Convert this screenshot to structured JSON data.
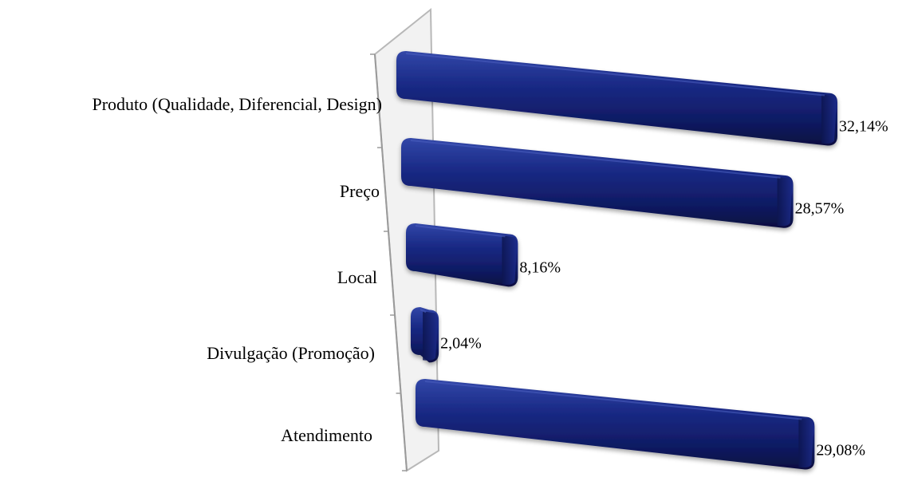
{
  "chart_data": {
    "type": "bar",
    "orientation": "horizontal",
    "style": "3d",
    "categories": [
      "Produto (Qualidade, Diferencial, Design)",
      "Preço",
      "Local",
      "Divulgação (Promoção)",
      "Atendimento"
    ],
    "values": [
      32.14,
      28.57,
      8.16,
      2.04,
      29.08
    ],
    "data_labels": [
      "32,14%",
      "28,57%",
      "8,16%",
      "2,04%",
      "29,08%"
    ],
    "unit": "%",
    "title": "",
    "xlabel": "",
    "ylabel": "",
    "xlim": [
      0,
      32.14
    ],
    "grid": false,
    "legend": "none",
    "colors": {
      "bar_light": "#2a3d9c",
      "bar": "#13206e",
      "bar_dark": "#0a1245",
      "axis_wall": "#bdbdbd"
    }
  }
}
